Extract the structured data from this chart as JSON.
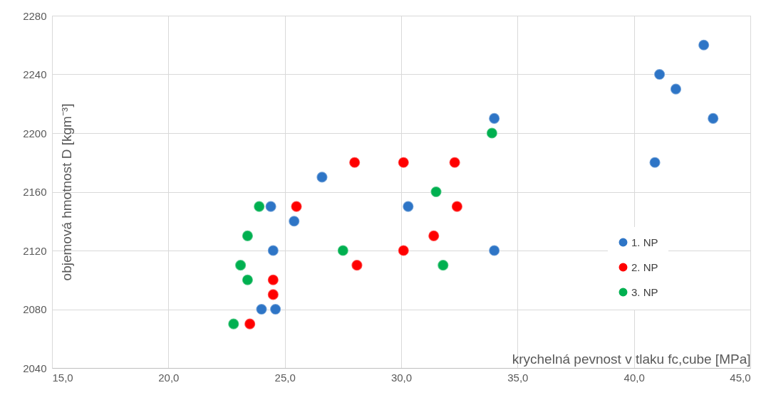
{
  "chart_data": {
    "type": "scatter",
    "xlabel": "krychelná pevnost v tlaku fc,cube [MPa]",
    "ylabel": "objemová hmotnost D [kgm⁻³]",
    "xlim": [
      15,
      45
    ],
    "xticks": [
      {
        "value": 15,
        "label": "15,0"
      },
      {
        "value": 20,
        "label": "20,0"
      },
      {
        "value": 25,
        "label": "25,0"
      },
      {
        "value": 30,
        "label": "30,0"
      },
      {
        "value": 35,
        "label": "35,0"
      },
      {
        "value": 40,
        "label": "40,0"
      },
      {
        "value": 45,
        "label": "45,0"
      }
    ],
    "ylim": [
      2040,
      2280
    ],
    "yticks": [
      2040,
      2080,
      2120,
      2160,
      2200,
      2240,
      2280
    ],
    "grid": true,
    "legend": "right",
    "marker": "circle",
    "series": [
      {
        "name": "1. NP",
        "color": "#2e75c6",
        "x": [
          24.4,
          25.4,
          26.6,
          24.5,
          24.0,
          24.6,
          30.3,
          34.0,
          34.0,
          41.1,
          41.8,
          43.0,
          43.4,
          40.9
        ],
        "values": [
          2150,
          2140,
          2170,
          2120,
          2080,
          2080,
          2150,
          2120,
          2210,
          2240,
          2230,
          2260,
          2210,
          2180
        ]
      },
      {
        "name": "2. NP",
        "color": "#ff0000",
        "x": [
          28.0,
          30.1,
          32.3,
          25.5,
          32.4,
          31.4,
          30.1,
          28.1,
          24.5,
          24.5,
          23.5
        ],
        "values": [
          2180,
          2180,
          2180,
          2150,
          2150,
          2130,
          2120,
          2110,
          2100,
          2090,
          2070
        ]
      },
      {
        "name": "3. NP",
        "color": "#00b050",
        "x": [
          33.9,
          31.5,
          23.9,
          23.4,
          27.5,
          31.8,
          23.1,
          23.4,
          22.8
        ],
        "values": [
          2200,
          2160,
          2150,
          2130,
          2120,
          2110,
          2110,
          2100,
          2070
        ]
      }
    ]
  }
}
